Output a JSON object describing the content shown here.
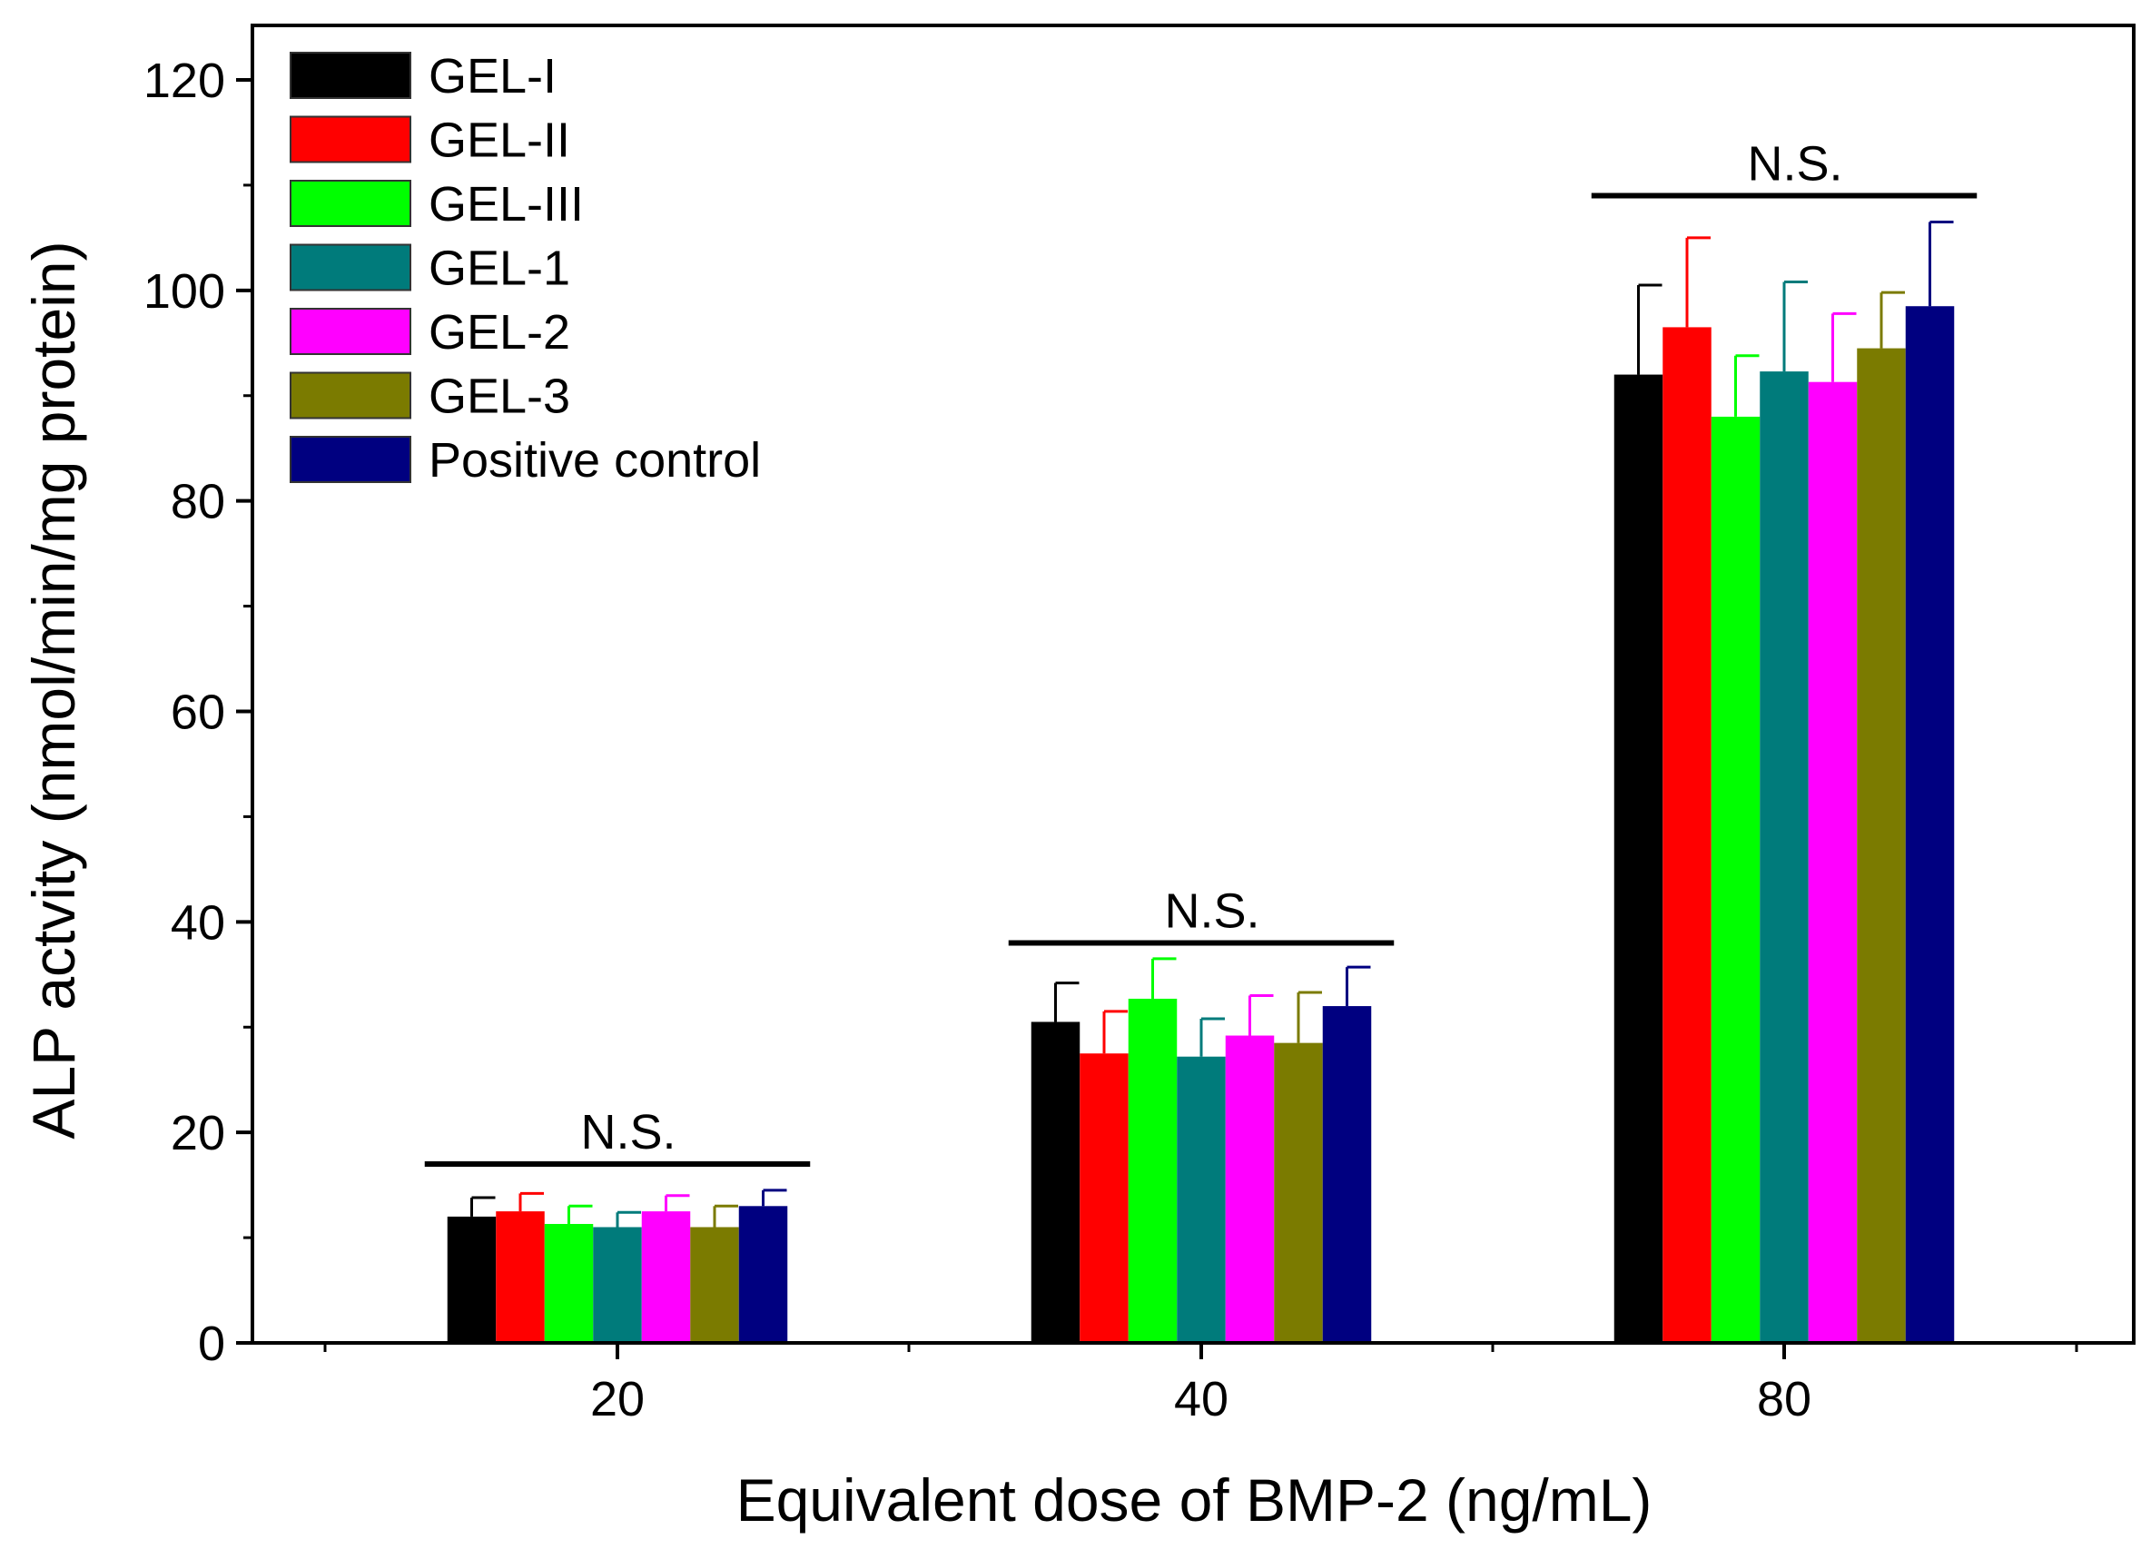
{
  "chart_data": {
    "type": "bar",
    "title": "",
    "xlabel": "Equivalent dose of BMP-2 (ng/mL)",
    "ylabel": "ALP actvity (nmol/min/mg protein)",
    "ylim": [
      0,
      120
    ],
    "yticks": [
      0,
      20,
      40,
      60,
      80,
      100,
      120
    ],
    "categories": [
      "20",
      "40",
      "80"
    ],
    "legend_position": "top-left",
    "series": [
      {
        "name": "GEL-I",
        "color": "#000000",
        "values": [
          12,
          30.5,
          92
        ],
        "errors": [
          1.8,
          3.7,
          8.5
        ]
      },
      {
        "name": "GEL-II",
        "color": "#ff0000",
        "values": [
          12.5,
          27.5,
          96.5
        ],
        "errors": [
          1.7,
          4.0,
          8.5
        ]
      },
      {
        "name": "GEL-III",
        "color": "#00ff00",
        "values": [
          11.3,
          32.7,
          88
        ],
        "errors": [
          1.7,
          3.8,
          5.8
        ]
      },
      {
        "name": "GEL-1",
        "color": "#007b7b",
        "values": [
          11,
          27.2,
          92.3
        ],
        "errors": [
          1.4,
          3.6,
          8.5
        ]
      },
      {
        "name": "GEL-2",
        "color": "#ff00ff",
        "values": [
          12.5,
          29.2,
          91.3
        ],
        "errors": [
          1.5,
          3.8,
          6.5
        ]
      },
      {
        "name": "GEL-3",
        "color": "#7b7b00",
        "values": [
          11,
          28.5,
          94.5
        ],
        "errors": [
          2.0,
          4.8,
          5.3
        ]
      },
      {
        "name": "Positive control",
        "color": "#000080",
        "values": [
          13,
          32,
          98.5
        ],
        "errors": [
          1.5,
          3.7,
          8.0
        ]
      }
    ],
    "annotations": [
      {
        "text": "N.S.",
        "category": "20",
        "line_y": 17,
        "text_y": 20
      },
      {
        "text": "N.S.",
        "category": "40",
        "line_y": 38,
        "text_y": 41
      },
      {
        "text": "N.S.",
        "category": "80",
        "line_y": 109,
        "text_y": 112
      }
    ]
  }
}
